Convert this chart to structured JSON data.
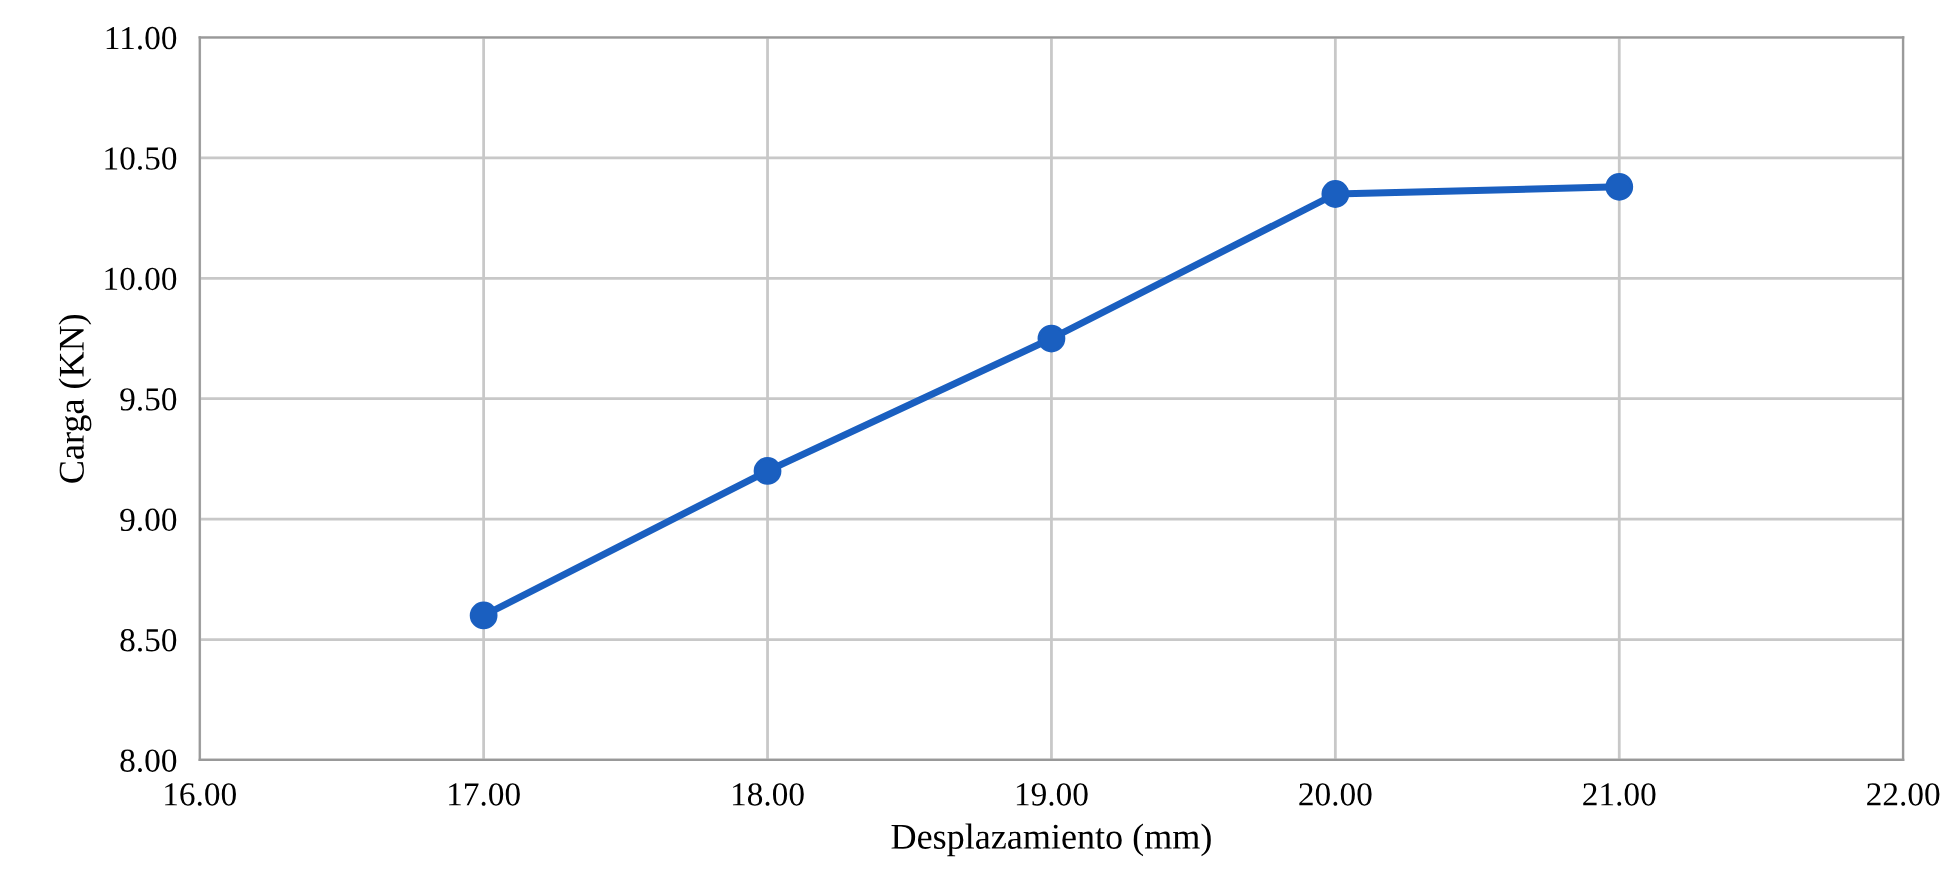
{
  "chart_data": {
    "type": "line",
    "xlabel": "Desplazamiento (mm)",
    "ylabel": "Carga (KN)",
    "x": [
      17,
      18,
      19,
      20,
      21
    ],
    "series": [
      {
        "color": "#1a5fc0",
        "values": [
          8.6,
          9.2,
          9.75,
          10.35,
          10.38
        ]
      }
    ],
    "xlim": [
      16,
      22
    ],
    "xticks": [
      {
        "value": 16,
        "label": "16.00"
      },
      {
        "value": 17,
        "label": "17.00"
      },
      {
        "value": 18,
        "label": "18.00"
      },
      {
        "value": 19,
        "label": "19.00"
      },
      {
        "value": 20,
        "label": "20.00"
      },
      {
        "value": 21,
        "label": "21.00"
      },
      {
        "value": 22,
        "label": "22.00"
      }
    ],
    "ylim": [
      8,
      11
    ],
    "yticks": [
      {
        "value": 8,
        "label": "8.00"
      },
      {
        "value": 8.5,
        "label": "8.50"
      },
      {
        "value": 9,
        "label": "9.00"
      },
      {
        "value": 9.5,
        "label": "9.50"
      },
      {
        "value": 10,
        "label": "10.00"
      },
      {
        "value": 10.5,
        "label": "10.50"
      },
      {
        "value": 11,
        "label": "11.00"
      }
    ],
    "grid": true,
    "marker": "circle",
    "line_style": "solid"
  }
}
